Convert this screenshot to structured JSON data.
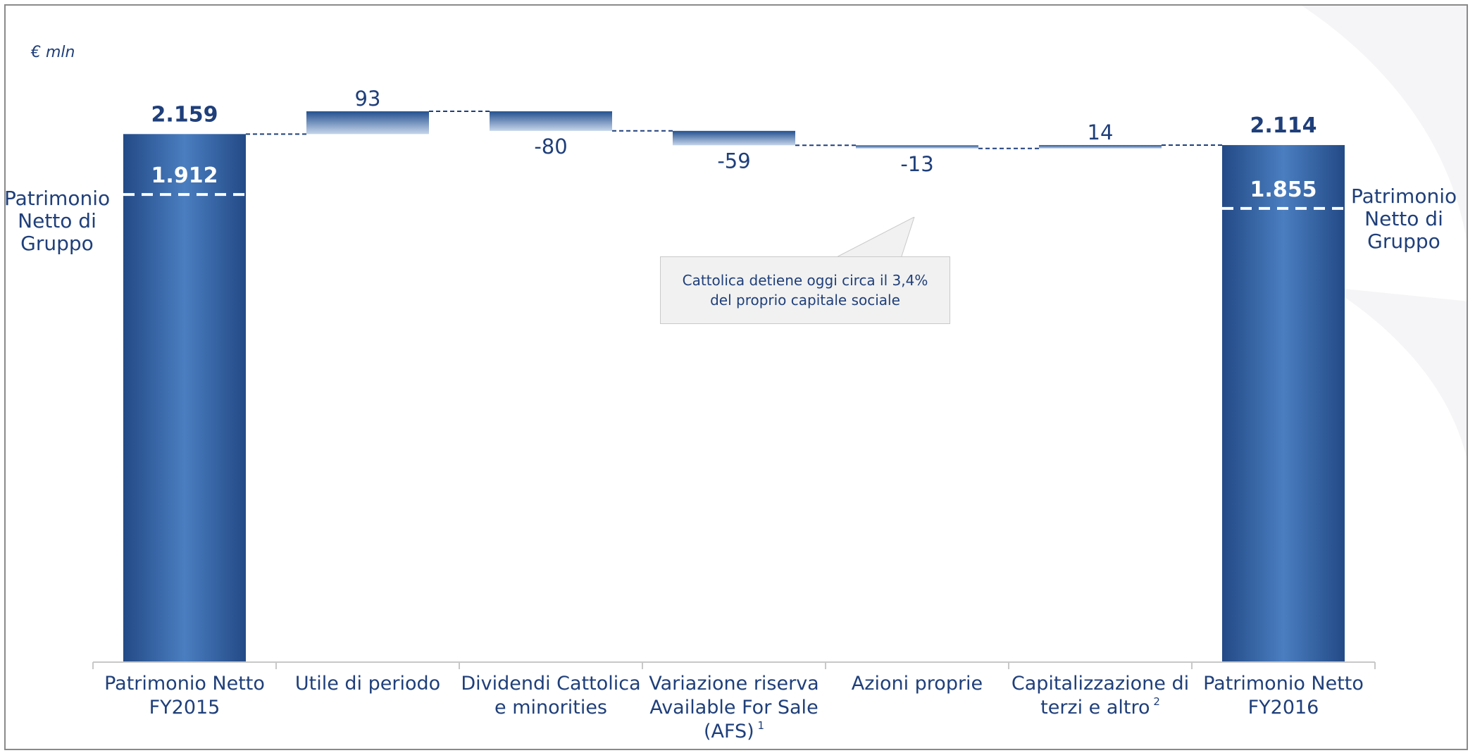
{
  "unit_label": "€ mln",
  "colors": {
    "bar_dark": "#234a86",
    "bar_light": "#4a7ec0",
    "delta_top": "#23508f",
    "delta_bottom": "#c6d6eb",
    "text": "#1f3f7a",
    "connector": "#1f3f7a"
  },
  "left_side_label": [
    "Patrimonio",
    "Netto di",
    "Gruppo"
  ],
  "right_side_label": [
    "Patrimonio",
    "Netto di",
    "Gruppo"
  ],
  "callout_text": "Cattolica detiene oggi circa il 3,4% del proprio capitale sociale",
  "chart_data": {
    "type": "bar",
    "subtype": "waterfall",
    "unit": "€ mln",
    "categories": [
      {
        "label": "Patrimonio Netto FY2015",
        "footnote": ""
      },
      {
        "label": "Utile di periodo",
        "footnote": ""
      },
      {
        "label": "Dividendi Cattolica e minorities",
        "footnote": ""
      },
      {
        "label": "Variazione riserva Available For Sale (AFS)",
        "footnote": "1"
      },
      {
        "label": "Azioni proprie",
        "footnote": ""
      },
      {
        "label": "Capitalizzazione di terzi e altro",
        "footnote": "2"
      },
      {
        "label": "Patrimonio Netto FY2016",
        "footnote": ""
      }
    ],
    "values": [
      2159,
      93,
      -80,
      -59,
      -13,
      14,
      2114
    ],
    "value_labels": [
      "2.159",
      "93",
      "-80",
      "-59",
      "-13",
      "14",
      "2.114"
    ],
    "total_indices": [
      0,
      6
    ],
    "group_equity": [
      {
        "index": 0,
        "value": 1912,
        "label": "1.912"
      },
      {
        "index": 6,
        "value": 1855,
        "label": "1.855"
      }
    ],
    "ylim": [
      0,
      2350
    ],
    "grid": false,
    "legend": "none"
  }
}
